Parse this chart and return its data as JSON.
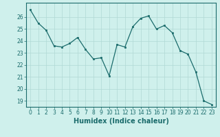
{
  "x": [
    0,
    1,
    2,
    3,
    4,
    5,
    6,
    7,
    8,
    9,
    10,
    11,
    12,
    13,
    14,
    15,
    16,
    17,
    18,
    19,
    20,
    21,
    22,
    23
  ],
  "y": [
    26.6,
    25.5,
    24.9,
    23.6,
    23.5,
    23.8,
    24.3,
    23.3,
    22.5,
    22.6,
    21.1,
    23.7,
    23.5,
    25.2,
    25.9,
    26.1,
    25.0,
    25.3,
    24.7,
    23.2,
    22.9,
    21.4,
    19.0,
    18.7
  ],
  "line_color": "#1a6b6b",
  "marker": "s",
  "marker_size": 2,
  "bg_color": "#cff0ec",
  "grid_color": "#b0d8d4",
  "xlabel": "Humidex (Indice chaleur)",
  "ylim_min": 18.5,
  "ylim_max": 27.2,
  "xlim_min": -0.5,
  "xlim_max": 23.5,
  "yticks": [
    19,
    20,
    21,
    22,
    23,
    24,
    25,
    26
  ],
  "xticks": [
    0,
    1,
    2,
    3,
    4,
    5,
    6,
    7,
    8,
    9,
    10,
    11,
    12,
    13,
    14,
    15,
    16,
    17,
    18,
    19,
    20,
    21,
    22,
    23
  ],
  "tick_fontsize": 5.5,
  "xlabel_fontsize": 7
}
